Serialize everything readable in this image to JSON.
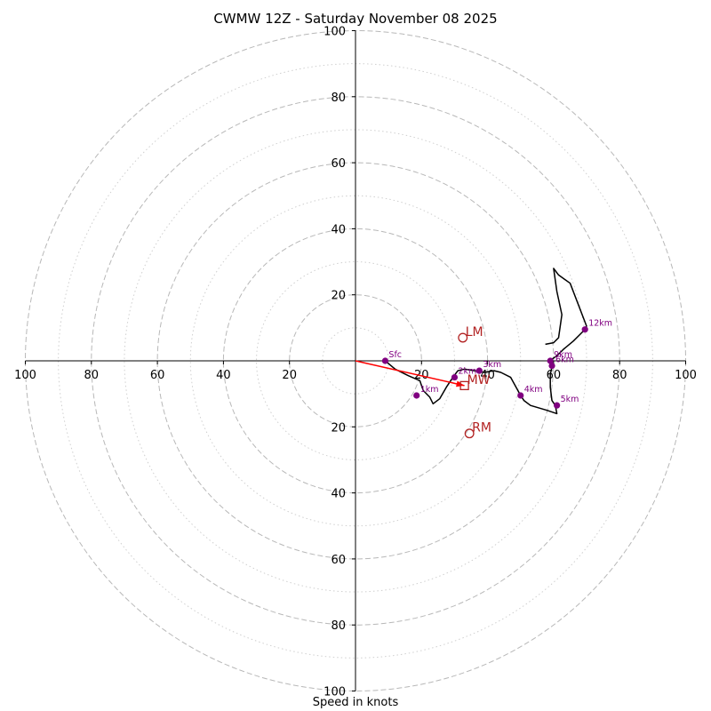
{
  "chart_data": {
    "type": "hodograph",
    "title": "CWMW 12Z - Saturday November 08 2025",
    "xlabel": "Speed in knots",
    "ylabel": "",
    "range": [
      -100,
      100
    ],
    "ring_major": [
      20,
      40,
      60,
      80,
      100
    ],
    "ring_minor": [
      10,
      30,
      50,
      70,
      90
    ],
    "x_ticks": [
      {
        "v": -100,
        "label": "100"
      },
      {
        "v": -80,
        "label": "80"
      },
      {
        "v": -60,
        "label": "60"
      },
      {
        "v": -40,
        "label": "40"
      },
      {
        "v": -20,
        "label": "20"
      },
      {
        "v": 20,
        "label": "20"
      },
      {
        "v": 40,
        "label": "40"
      },
      {
        "v": 60,
        "label": "60"
      },
      {
        "v": 80,
        "label": "80"
      },
      {
        "v": 100,
        "label": "100"
      }
    ],
    "y_ticks": [
      {
        "v": 100,
        "label": "100"
      },
      {
        "v": 80,
        "label": "80"
      },
      {
        "v": 60,
        "label": "60"
      },
      {
        "v": 40,
        "label": "40"
      },
      {
        "v": 20,
        "label": "20"
      },
      {
        "v": -20,
        "label": "20"
      },
      {
        "v": -40,
        "label": "40"
      },
      {
        "v": -60,
        "label": "60"
      },
      {
        "v": -80,
        "label": "80"
      },
      {
        "v": -100,
        "label": "100"
      }
    ],
    "trace": [
      [
        9,
        0
      ],
      [
        12,
        -2.5
      ],
      [
        16,
        -4.5
      ],
      [
        19.5,
        -6
      ],
      [
        20.5,
        -9
      ],
      [
        22.5,
        -11
      ],
      [
        23.5,
        -13
      ],
      [
        25.5,
        -11.5
      ],
      [
        27.5,
        -8
      ],
      [
        29.5,
        -5
      ],
      [
        31,
        -3
      ],
      [
        33,
        -2.5
      ],
      [
        36,
        -3
      ],
      [
        39,
        -3.5
      ],
      [
        42,
        -3
      ],
      [
        44,
        -3.5
      ],
      [
        47,
        -5
      ],
      [
        50,
        -10.5
      ],
      [
        51,
        -12
      ],
      [
        53,
        -13.5
      ],
      [
        58,
        -15
      ],
      [
        61,
        -16
      ],
      [
        60.5,
        -13.5
      ],
      [
        59.5,
        -12
      ],
      [
        59,
        -8
      ],
      [
        59,
        -4
      ],
      [
        59.5,
        -2
      ],
      [
        59,
        -0.5
      ],
      [
        59.5,
        0.5
      ],
      [
        61,
        1.5
      ],
      [
        63,
        3.5
      ],
      [
        66,
        6
      ],
      [
        69,
        9
      ],
      [
        70,
        10.5
      ],
      [
        65,
        23.5
      ],
      [
        61.5,
        26
      ],
      [
        60,
        28
      ],
      [
        61,
        21
      ],
      [
        62.5,
        14
      ],
      [
        61.5,
        7
      ],
      [
        60,
        5.5
      ],
      [
        57.5,
        5
      ]
    ],
    "heights": [
      {
        "label": "Sfc",
        "u": 9,
        "v": 0
      },
      {
        "label": "1km",
        "u": 18.5,
        "v": -10.5
      },
      {
        "label": "2km",
        "u": 30,
        "v": -5
      },
      {
        "label": "3km",
        "u": 37.5,
        "v": -3
      },
      {
        "label": "4km",
        "u": 50,
        "v": -10.5
      },
      {
        "label": "5km",
        "u": 61,
        "v": -13.5
      },
      {
        "label": "6km",
        "u": 59.5,
        "v": -1.5
      },
      {
        "label": "9km",
        "u": 59,
        "v": 0
      },
      {
        "label": "12km",
        "u": 69.5,
        "v": 9.5
      }
    ],
    "motions": [
      {
        "label": "LM",
        "u": 32.5,
        "v": 7,
        "marker": "circle"
      },
      {
        "label": "RM",
        "u": 34.5,
        "v": -22,
        "marker": "circle"
      },
      {
        "label": "MW",
        "u": 33,
        "v": -7.5,
        "marker": "square"
      }
    ],
    "colors": {
      "trace": "#000000",
      "height": "#800080",
      "motion": "#b22222",
      "vector": "#ff0000",
      "grid": "#b8b8b8"
    }
  }
}
